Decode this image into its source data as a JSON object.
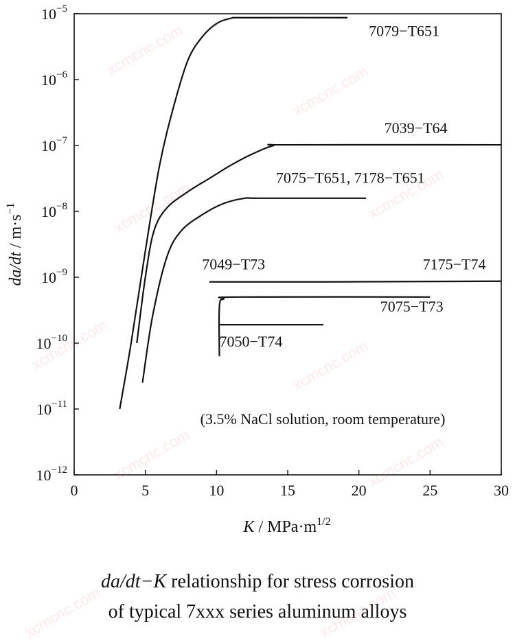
{
  "chart_data": {
    "type": "line",
    "xlabel": {
      "var": "K",
      "unit": "MPa",
      "root": "m",
      "power": "1/2"
    },
    "ylabel": {
      "var": "da/dt",
      "unit": "m",
      "dot": "s",
      "power": "−1"
    },
    "x_ticks": [
      "0",
      "5",
      "10",
      "15",
      "20",
      "25",
      "30"
    ],
    "x_tick_values": [
      0,
      5,
      10,
      15,
      20,
      25,
      30
    ],
    "y_ticks": [
      {
        "base": "10",
        "exp": "−5",
        "value": -5
      },
      {
        "base": "10",
        "exp": "−6",
        "value": -6
      },
      {
        "base": "10",
        "exp": "−7",
        "value": -7
      },
      {
        "base": "10",
        "exp": "−8",
        "value": -8
      },
      {
        "base": "10",
        "exp": "−9",
        "value": -9
      },
      {
        "base": "10",
        "exp": "−10",
        "value": -10
      },
      {
        "base": "10",
        "exp": "−11",
        "value": -11
      },
      {
        "base": "10",
        "exp": "−12",
        "value": -12
      }
    ],
    "xlim": [
      0,
      30
    ],
    "ylim_log10": [
      -12,
      -5
    ],
    "y_scale": "log",
    "grid": false,
    "annotation": "(3.5% NaCl solution, room temperature)",
    "series": [
      {
        "name": "7079−T651",
        "points": [
          [
            3.2,
            -11.0
          ],
          [
            4.0,
            -10.0
          ],
          [
            5.0,
            -8.6
          ],
          [
            6.0,
            -7.3
          ],
          [
            7.0,
            -6.4
          ],
          [
            8.0,
            -5.7
          ],
          [
            9.0,
            -5.35
          ],
          [
            10.0,
            -5.15
          ],
          [
            11.0,
            -5.07
          ],
          [
            12.0,
            -5.06
          ],
          [
            19.2,
            -5.06
          ]
        ]
      },
      {
        "name": "7039−T64",
        "points": [
          [
            4.4,
            -10.0
          ],
          [
            5.0,
            -9.0
          ],
          [
            5.6,
            -8.3
          ],
          [
            6.5,
            -7.95
          ],
          [
            8.0,
            -7.7
          ],
          [
            9.5,
            -7.5
          ],
          [
            11.0,
            -7.3
          ],
          [
            12.5,
            -7.13
          ],
          [
            14.0,
            -7.0
          ],
          [
            15.0,
            -6.99
          ],
          [
            30.0,
            -6.99
          ]
        ]
      },
      {
        "name": "7075−T651, 7178−T651",
        "points": [
          [
            4.8,
            -10.6
          ],
          [
            5.5,
            -9.6
          ],
          [
            6.5,
            -8.7
          ],
          [
            7.5,
            -8.3
          ],
          [
            9.0,
            -8.05
          ],
          [
            10.5,
            -7.88
          ],
          [
            12.0,
            -7.8
          ],
          [
            13.0,
            -7.8
          ],
          [
            20.5,
            -7.8
          ]
        ]
      },
      {
        "name": "7049−T73",
        "points": [
          [
            9.5,
            -9.07
          ],
          [
            18.0,
            -9.07
          ]
        ]
      },
      {
        "name": "7175−T74",
        "points": [
          [
            18.0,
            -9.07
          ],
          [
            30.0,
            -9.06
          ]
        ]
      },
      {
        "name": "7075−T73",
        "points": [
          [
            10.2,
            -10.2
          ],
          [
            10.2,
            -9.45
          ],
          [
            10.5,
            -9.33
          ],
          [
            11.5,
            -9.3
          ],
          [
            25.0,
            -9.3
          ]
        ]
      },
      {
        "name": "7050−T74",
        "points": [
          [
            10.2,
            -9.72
          ],
          [
            17.5,
            -9.72
          ]
        ]
      }
    ]
  },
  "caption": {
    "line1_math": "da/dt−K",
    "line1_text": " relationship for stress corrosion",
    "line2": "of typical 7xxx series aluminum alloys"
  },
  "watermark": "xcmcnc.com"
}
